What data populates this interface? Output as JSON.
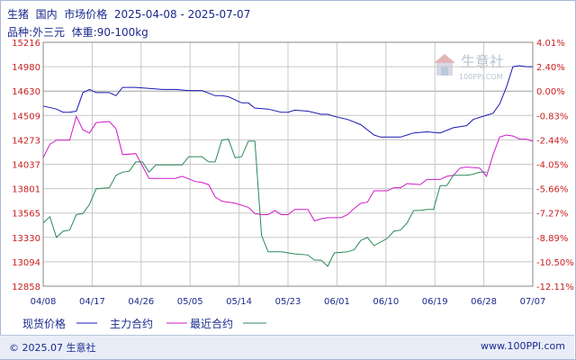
{
  "header": {
    "title": "生猪  国内  市场价格  2025-04-08 - 2025-07-07",
    "subtitle": "品种:外三元  体重:90-100kg"
  },
  "watermark": {
    "text": "生意社",
    "url": "100PPI.COM"
  },
  "footer": {
    "copyright": "© 2025.07 生意社",
    "site": "www.100PPI.com"
  },
  "chart_data": {
    "type": "line",
    "x_ticks": [
      "04/08",
      "04/17",
      "04/26",
      "05/05",
      "05/14",
      "05/23",
      "06/01",
      "06/10",
      "06/19",
      "06/28",
      "07/07"
    ],
    "y_left_ticks": [
      "15216",
      "14980",
      "14630",
      "14509",
      "14273",
      "14037",
      "13801",
      "13565",
      "13330",
      "13094",
      "12858"
    ],
    "y_right_ticks": [
      "4.01%",
      "2.40%",
      "0.00%",
      "-0.83%",
      "-2.44%",
      "-4.05%",
      "-5.66%",
      "-7.27%",
      "-8.89%",
      "-10.50%",
      "-12.11%"
    ],
    "ylim": [
      12858,
      15216
    ],
    "baseline": 14630,
    "legend": [
      "现货价格",
      "主力合约",
      "最近合约"
    ],
    "colors": {
      "spot": "#1a1ab4",
      "main": "#d01ac8",
      "near": "#2a8a5a",
      "grid": "#c8c8c8",
      "axis": "#1a2a8c"
    },
    "series": [
      {
        "name": "现货价格",
        "color": "#1a1ab4",
        "values": [
          [
            0,
            14600
          ],
          [
            2,
            14570
          ],
          [
            3,
            14540
          ],
          [
            4,
            14540
          ],
          [
            5,
            14550
          ],
          [
            6,
            14730
          ],
          [
            7,
            14760
          ],
          [
            8,
            14730
          ],
          [
            10,
            14730
          ],
          [
            11,
            14700
          ],
          [
            12,
            14780
          ],
          [
            14,
            14780
          ],
          [
            16,
            14770
          ],
          [
            18,
            14760
          ],
          [
            20,
            14760
          ],
          [
            22,
            14750
          ],
          [
            24,
            14750
          ],
          [
            26,
            14700
          ],
          [
            27,
            14700
          ],
          [
            28,
            14690
          ],
          [
            30,
            14630
          ],
          [
            31,
            14630
          ],
          [
            32,
            14580
          ],
          [
            34,
            14570
          ],
          [
            36,
            14540
          ],
          [
            37,
            14540
          ],
          [
            38,
            14560
          ],
          [
            40,
            14550
          ],
          [
            42,
            14520
          ],
          [
            43,
            14520
          ],
          [
            44,
            14500
          ],
          [
            46,
            14470
          ],
          [
            48,
            14420
          ],
          [
            50,
            14320
          ],
          [
            51,
            14300
          ],
          [
            54,
            14300
          ],
          [
            55,
            14320
          ],
          [
            56,
            14340
          ],
          [
            58,
            14350
          ],
          [
            60,
            14340
          ],
          [
            62,
            14390
          ],
          [
            64,
            14410
          ],
          [
            65,
            14470
          ],
          [
            67,
            14510
          ],
          [
            68,
            14530
          ],
          [
            69,
            14620
          ],
          [
            70,
            14780
          ],
          [
            71,
            14980
          ],
          [
            72,
            14990
          ],
          [
            73,
            14980
          ],
          [
            74,
            14980
          ]
        ]
      },
      {
        "name": "主力合约",
        "color": "#d01ac8",
        "values": [
          [
            0,
            14100
          ],
          [
            1,
            14230
          ],
          [
            2,
            14270
          ],
          [
            4,
            14270
          ],
          [
            5,
            14500
          ],
          [
            6,
            14370
          ],
          [
            7,
            14340
          ],
          [
            8,
            14440
          ],
          [
            10,
            14450
          ],
          [
            11,
            14380
          ],
          [
            12,
            14130
          ],
          [
            14,
            14140
          ],
          [
            15,
            14020
          ],
          [
            16,
            13900
          ],
          [
            18,
            13900
          ],
          [
            20,
            13900
          ],
          [
            21,
            13920
          ],
          [
            23,
            13870
          ],
          [
            24,
            13860
          ],
          [
            25,
            13840
          ],
          [
            26,
            13720
          ],
          [
            27,
            13680
          ],
          [
            29,
            13660
          ],
          [
            31,
            13620
          ],
          [
            32,
            13560
          ],
          [
            33,
            13550
          ],
          [
            34,
            13550
          ],
          [
            35,
            13590
          ],
          [
            36,
            13550
          ],
          [
            37,
            13550
          ],
          [
            38,
            13600
          ],
          [
            40,
            13600
          ],
          [
            41,
            13490
          ],
          [
            42,
            13510
          ],
          [
            43,
            13520
          ],
          [
            45,
            13520
          ],
          [
            46,
            13550
          ],
          [
            47,
            13610
          ],
          [
            48,
            13660
          ],
          [
            49,
            13670
          ],
          [
            50,
            13780
          ],
          [
            52,
            13780
          ],
          [
            53,
            13810
          ],
          [
            54,
            13810
          ],
          [
            55,
            13850
          ],
          [
            57,
            13840
          ],
          [
            58,
            13890
          ],
          [
            60,
            13890
          ],
          [
            61,
            13920
          ],
          [
            62,
            13930
          ],
          [
            63,
            14000
          ],
          [
            64,
            14010
          ],
          [
            66,
            14000
          ],
          [
            67,
            13920
          ],
          [
            68,
            14130
          ],
          [
            69,
            14300
          ],
          [
            70,
            14320
          ],
          [
            71,
            14310
          ],
          [
            72,
            14280
          ],
          [
            73,
            14280
          ],
          [
            74,
            14260
          ]
        ]
      },
      {
        "name": "最近合约",
        "color": "#2a8a5a",
        "values": [
          [
            0,
            13470
          ],
          [
            1,
            13530
          ],
          [
            2,
            13330
          ],
          [
            3,
            13390
          ],
          [
            4,
            13400
          ],
          [
            5,
            13550
          ],
          [
            6,
            13560
          ],
          [
            7,
            13650
          ],
          [
            8,
            13800
          ],
          [
            10,
            13810
          ],
          [
            11,
            13930
          ],
          [
            12,
            13960
          ],
          [
            13,
            13970
          ],
          [
            14,
            14060
          ],
          [
            15,
            14060
          ],
          [
            16,
            13960
          ],
          [
            17,
            14030
          ],
          [
            18,
            14030
          ],
          [
            20,
            14030
          ],
          [
            21,
            14030
          ],
          [
            22,
            14110
          ],
          [
            24,
            14110
          ],
          [
            25,
            14060
          ],
          [
            26,
            14060
          ],
          [
            27,
            14270
          ],
          [
            28,
            14280
          ],
          [
            29,
            14100
          ],
          [
            30,
            14110
          ],
          [
            31,
            14260
          ],
          [
            32,
            14260
          ],
          [
            33,
            13350
          ],
          [
            34,
            13190
          ],
          [
            36,
            13190
          ],
          [
            38,
            13170
          ],
          [
            40,
            13160
          ],
          [
            41,
            13110
          ],
          [
            42,
            13110
          ],
          [
            43,
            13050
          ],
          [
            44,
            13180
          ],
          [
            46,
            13190
          ],
          [
            47,
            13210
          ],
          [
            48,
            13300
          ],
          [
            49,
            13330
          ],
          [
            50,
            13250
          ],
          [
            52,
            13320
          ],
          [
            53,
            13390
          ],
          [
            54,
            13400
          ],
          [
            55,
            13470
          ],
          [
            56,
            13590
          ],
          [
            57,
            13590
          ],
          [
            58,
            13600
          ],
          [
            59,
            13600
          ],
          [
            60,
            13830
          ],
          [
            61,
            13830
          ],
          [
            62,
            13930
          ],
          [
            64,
            13930
          ],
          [
            65,
            13940
          ],
          [
            66,
            13960
          ],
          [
            67,
            13960
          ]
        ]
      }
    ]
  }
}
